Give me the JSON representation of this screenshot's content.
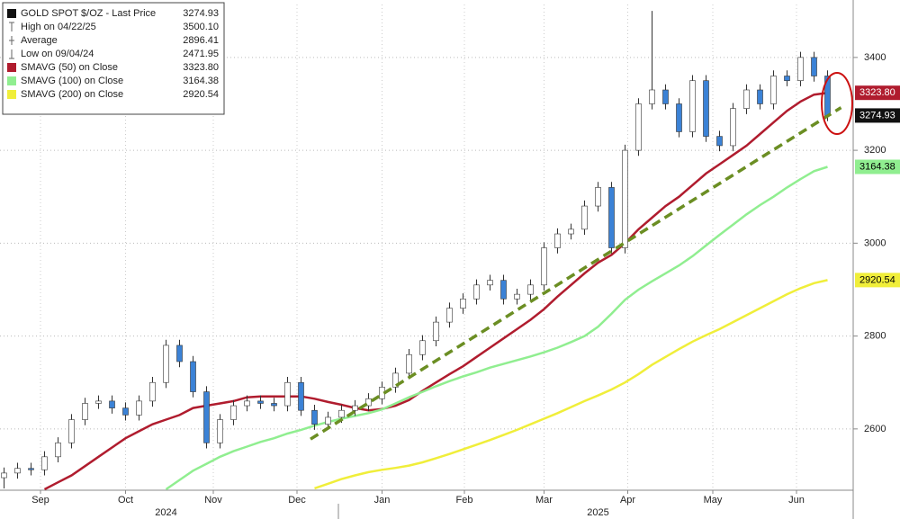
{
  "chart_data": {
    "type": "candlestick",
    "x": [
      0,
      1,
      2,
      3,
      4,
      5,
      6,
      7,
      8,
      9,
      10,
      11,
      12,
      13,
      14,
      15,
      16,
      17,
      18,
      19,
      20,
      21,
      22,
      23,
      24,
      25,
      26,
      27,
      28,
      29,
      30,
      31,
      32,
      33,
      34,
      35,
      36,
      37,
      38,
      39,
      40,
      41,
      42,
      43,
      44,
      45,
      46,
      47,
      48,
      49,
      50,
      51,
      52,
      53,
      54,
      55,
      56,
      57,
      58,
      59,
      60,
      61
    ],
    "xlim": [
      -0.3,
      62.9
    ],
    "xticks": [
      {
        "value": 2.7,
        "label": "Sep"
      },
      {
        "value": 9.0,
        "label": "Oct"
      },
      {
        "value": 15.5,
        "label": "Nov"
      },
      {
        "value": 21.7,
        "label": "Dec"
      },
      {
        "value": 28.0,
        "label": "Jan"
      },
      {
        "value": 34.1,
        "label": "Feb"
      },
      {
        "value": 40.0,
        "label": "Mar"
      },
      {
        "value": 46.2,
        "label": "Apr"
      },
      {
        "value": 52.5,
        "label": "May"
      },
      {
        "value": 58.7,
        "label": "Jun"
      }
    ],
    "year_labels": [
      {
        "value": 12,
        "label": "2024"
      },
      {
        "value": 44,
        "label": "2025"
      }
    ],
    "ylim": [
      2468,
      3514
    ],
    "yticks": [
      2600,
      2800,
      3000,
      3200,
      3400
    ],
    "grid": true,
    "candles": {
      "name": "GOLD SPOT $/OZ - Last Price",
      "up_color": "#ffffff",
      "down_color": "#3b82d6",
      "edge_color": "#333333",
      "open": [
        2495,
        2505,
        2515,
        2512,
        2540,
        2570,
        2620,
        2655,
        2660,
        2645,
        2630,
        2660,
        2700,
        2780,
        2745,
        2680,
        2570,
        2620,
        2650,
        2660,
        2655,
        2650,
        2700,
        2640,
        2610,
        2625,
        2640,
        2650,
        2665,
        2690,
        2720,
        2760,
        2790,
        2830,
        2860,
        2880,
        2910,
        2920,
        2880,
        2890,
        2910,
        2990,
        3020,
        3030,
        3080,
        3120,
        2990,
        3200,
        3300,
        3330,
        3300,
        3240,
        3350,
        3230,
        3210,
        3290,
        3330,
        3300,
        3360,
        3350,
        3400,
        3360
      ],
      "high": [
        2517,
        2527,
        2527,
        2552,
        2582,
        2632,
        2667,
        2672,
        2672,
        2657,
        2672,
        2712,
        2792,
        2792,
        2757,
        2692,
        2632,
        2662,
        2672,
        2672,
        2667,
        2712,
        2712,
        2652,
        2637,
        2652,
        2662,
        2677,
        2702,
        2732,
        2772,
        2802,
        2842,
        2872,
        2892,
        2922,
        2932,
        2932,
        2902,
        2922,
        3002,
        3032,
        3042,
        3092,
        3132,
        3132,
        3212,
        3312,
        3500.1,
        3342,
        3312,
        3362,
        3362,
        3242,
        3302,
        3342,
        3342,
        3372,
        3372,
        3412,
        3412,
        3372
      ],
      "low": [
        2471.95,
        2493,
        2500,
        2500,
        2528,
        2558,
        2608,
        2643,
        2633,
        2618,
        2618,
        2648,
        2688,
        2733,
        2668,
        2558,
        2558,
        2608,
        2638,
        2643,
        2638,
        2638,
        2628,
        2598,
        2598,
        2613,
        2628,
        2638,
        2653,
        2678,
        2708,
        2748,
        2778,
        2818,
        2848,
        2868,
        2898,
        2868,
        2868,
        2878,
        2898,
        2978,
        3008,
        3018,
        3068,
        2978,
        2978,
        3188,
        3288,
        3288,
        3228,
        3228,
        3218,
        3198,
        3198,
        3278,
        3288,
        3288,
        3338,
        3338,
        3348,
        3262.93
      ],
      "close": [
        2505,
        2515,
        2512,
        2540,
        2570,
        2620,
        2655,
        2660,
        2645,
        2630,
        2660,
        2700,
        2780,
        2745,
        2680,
        2570,
        2620,
        2650,
        2660,
        2655,
        2650,
        2700,
        2640,
        2610,
        2625,
        2640,
        2650,
        2665,
        2690,
        2720,
        2760,
        2790,
        2830,
        2860,
        2880,
        2910,
        2920,
        2880,
        2890,
        2910,
        2990,
        3020,
        3030,
        3080,
        3120,
        2990,
        3200,
        3300,
        3330,
        3300,
        3240,
        3350,
        3230,
        3210,
        3290,
        3330,
        3300,
        3360,
        3350,
        3400,
        3360,
        3274.93
      ],
      "tag_color": "#111111"
    },
    "stats": [
      {
        "name": "High on 04/22/25",
        "value": 3500.1,
        "value_label": "3500.10"
      },
      {
        "name": "Average",
        "value": 2896.41
      },
      {
        "name": "Low on 09/04/24",
        "value": 2471.95
      }
    ],
    "series": [
      {
        "name": "SMAVG (50) on Close",
        "color": "#b01c2e",
        "value_label": "3323.80",
        "tag_text_color": "#ffffff",
        "values": [
          null,
          null,
          null,
          2470,
          2485,
          2500,
          2520,
          2540,
          2560,
          2580,
          2595,
          2610,
          2620,
          2630,
          2645,
          2650,
          2655,
          2660,
          2668,
          2670,
          2670,
          2670,
          2670,
          2665,
          2658,
          2652,
          2645,
          2640,
          2643,
          2650,
          2662,
          2682,
          2700,
          2718,
          2735,
          2755,
          2775,
          2795,
          2815,
          2835,
          2858,
          2885,
          2910,
          2935,
          2958,
          2975,
          3000,
          3030,
          3055,
          3080,
          3100,
          3125,
          3150,
          3170,
          3190,
          3210,
          3235,
          3260,
          3285,
          3305,
          3320,
          3323.8
        ]
      },
      {
        "name": "SMAVG (100) on Close",
        "color": "#90ee90",
        "tag_text_color": "#000000",
        "values": [
          null,
          null,
          null,
          null,
          null,
          null,
          null,
          null,
          null,
          null,
          null,
          null,
          2470,
          2490,
          2510,
          2525,
          2540,
          2552,
          2562,
          2572,
          2580,
          2590,
          2598,
          2607,
          2615,
          2622,
          2628,
          2634,
          2642,
          2655,
          2668,
          2680,
          2692,
          2703,
          2713,
          2722,
          2732,
          2740,
          2748,
          2756,
          2765,
          2775,
          2787,
          2800,
          2820,
          2848,
          2878,
          2900,
          2918,
          2935,
          2952,
          2972,
          2995,
          3018,
          3040,
          3062,
          3082,
          3100,
          3120,
          3138,
          3155,
          3164.38
        ]
      },
      {
        "name": "SMAVG (200) on Close",
        "color": "#f0ee3a",
        "tag_text_color": "#000000",
        "values": [
          null,
          null,
          null,
          null,
          null,
          null,
          null,
          null,
          null,
          null,
          null,
          null,
          null,
          null,
          null,
          null,
          null,
          null,
          null,
          null,
          null,
          null,
          null,
          2472,
          2482,
          2492,
          2500,
          2507,
          2512,
          2516,
          2521,
          2528,
          2537,
          2546,
          2556,
          2566,
          2576,
          2587,
          2598,
          2610,
          2622,
          2634,
          2647,
          2660,
          2672,
          2685,
          2700,
          2718,
          2738,
          2755,
          2772,
          2788,
          2802,
          2815,
          2830,
          2845,
          2860,
          2875,
          2890,
          2903,
          2914,
          2920.54
        ]
      }
    ],
    "trendline": {
      "x": [
        22.7,
        62
      ],
      "values": [
        2578,
        3292
      ],
      "color": "#6b8e23"
    },
    "legend_corner": "top-left"
  }
}
